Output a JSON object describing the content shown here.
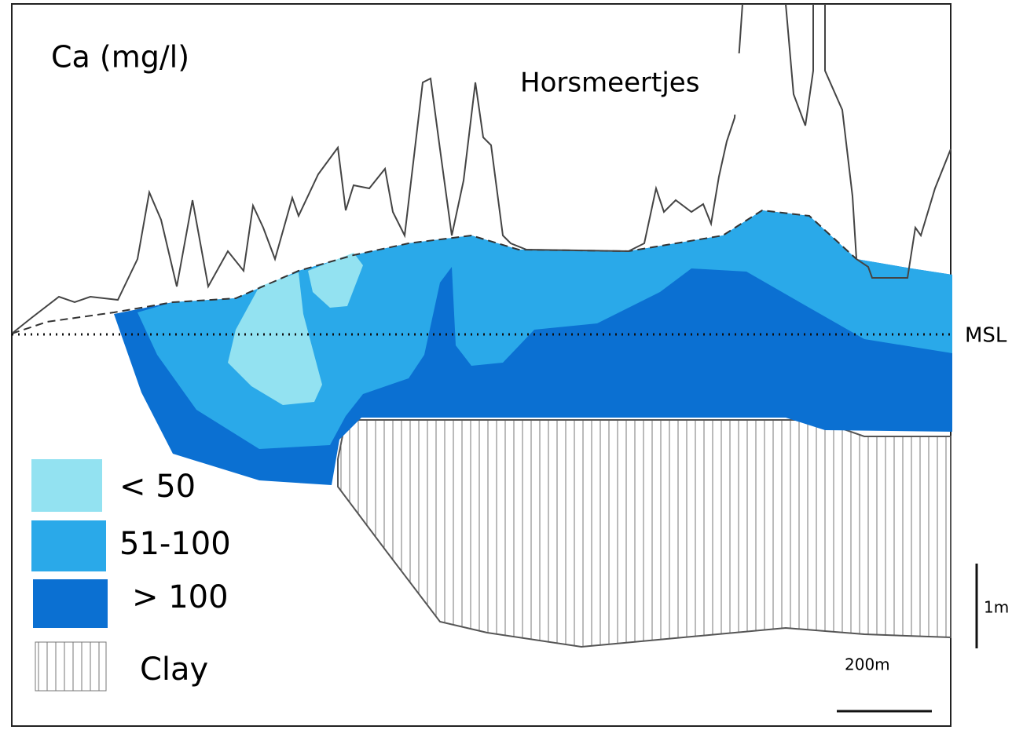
{
  "title": "Ca (mg/l)",
  "location_label": "Horsmeertjes",
  "reference_label": "MSL",
  "legend": [
    {
      "label": "< 50",
      "color": "#93e2f1"
    },
    {
      "label": "51-100",
      "color": "#2aa9e9"
    },
    {
      "label": "> 100",
      "color": "#0b70d2"
    },
    {
      "label": "Clay"
    }
  ],
  "scale": {
    "vertical": "1m",
    "horizontal": "200m"
  }
}
